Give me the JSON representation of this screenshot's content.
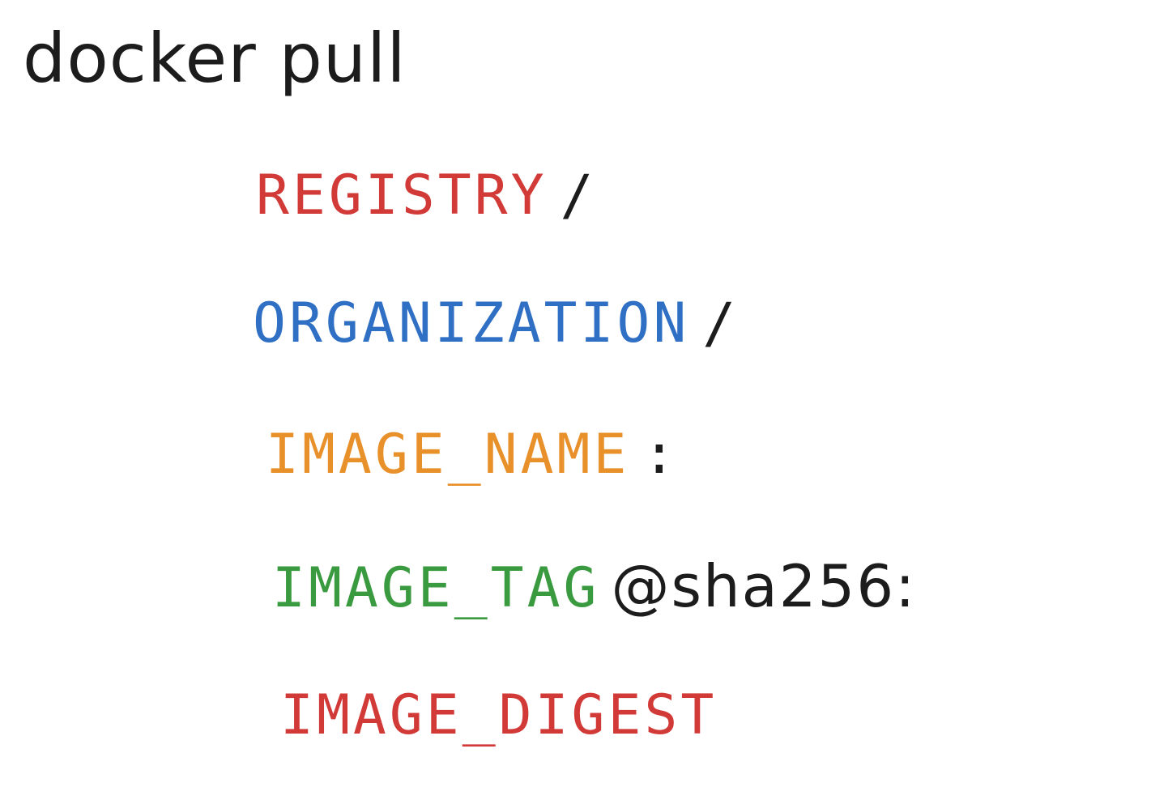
{
  "command": "docker pull",
  "parts": {
    "registry": {
      "label": "REGISTRY",
      "separator": "/",
      "color": "#d23a38"
    },
    "organization": {
      "label": "ORGANIZATION",
      "separator": "/",
      "color": "#2f6fc4"
    },
    "image_name": {
      "label": "IMAGE_NAME",
      "separator": ":",
      "color": "#e8902a"
    },
    "image_tag": {
      "label": "IMAGE_TAG",
      "separator": "@sha256:",
      "color": "#3a9a3f"
    },
    "image_digest": {
      "label": "IMAGE_DIGEST",
      "color": "#d23a38"
    }
  },
  "colors": {
    "ink": "#1c1c1c",
    "background": "#ffffff"
  }
}
